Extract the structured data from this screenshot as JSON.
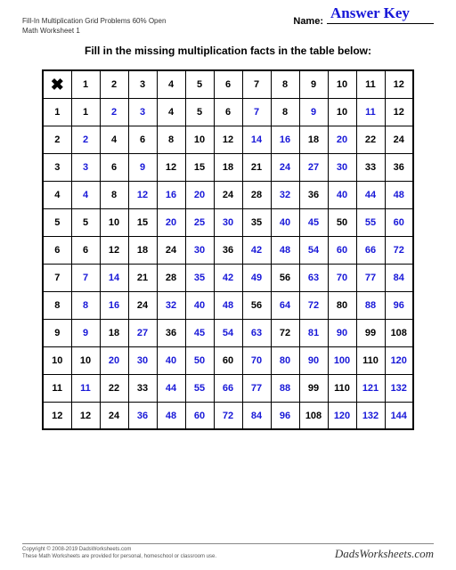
{
  "header": {
    "title_line1": "Fill-In Multiplication Grid Problems 60% Open",
    "title_line2": "Math Worksheet 1",
    "name_label": "Name:",
    "answer_key_text": "Answer Key"
  },
  "instruction": "Fill in the missing multiplication facts in the table below:",
  "grid": {
    "corner_symbol": "✖",
    "size": 12,
    "header_color": "#000000",
    "given_color": "#000000",
    "answer_color": "#1818d8",
    "cell_font_size": 11,
    "cells": [
      [
        {
          "v": 1,
          "a": false
        },
        {
          "v": 2,
          "a": true
        },
        {
          "v": 3,
          "a": true
        },
        {
          "v": 4,
          "a": false
        },
        {
          "v": 5,
          "a": false
        },
        {
          "v": 6,
          "a": false
        },
        {
          "v": 7,
          "a": true
        },
        {
          "v": 8,
          "a": false
        },
        {
          "v": 9,
          "a": true
        },
        {
          "v": 10,
          "a": false
        },
        {
          "v": 11,
          "a": true
        },
        {
          "v": 12,
          "a": false
        }
      ],
      [
        {
          "v": 2,
          "a": true
        },
        {
          "v": 4,
          "a": false
        },
        {
          "v": 6,
          "a": false
        },
        {
          "v": 8,
          "a": false
        },
        {
          "v": 10,
          "a": false
        },
        {
          "v": 12,
          "a": false
        },
        {
          "v": 14,
          "a": true
        },
        {
          "v": 16,
          "a": true
        },
        {
          "v": 18,
          "a": false
        },
        {
          "v": 20,
          "a": true
        },
        {
          "v": 22,
          "a": false
        },
        {
          "v": 24,
          "a": false
        }
      ],
      [
        {
          "v": 3,
          "a": true
        },
        {
          "v": 6,
          "a": false
        },
        {
          "v": 9,
          "a": true
        },
        {
          "v": 12,
          "a": false
        },
        {
          "v": 15,
          "a": false
        },
        {
          "v": 18,
          "a": false
        },
        {
          "v": 21,
          "a": false
        },
        {
          "v": 24,
          "a": true
        },
        {
          "v": 27,
          "a": true
        },
        {
          "v": 30,
          "a": true
        },
        {
          "v": 33,
          "a": false
        },
        {
          "v": 36,
          "a": false
        }
      ],
      [
        {
          "v": 4,
          "a": true
        },
        {
          "v": 8,
          "a": false
        },
        {
          "v": 12,
          "a": true
        },
        {
          "v": 16,
          "a": true
        },
        {
          "v": 20,
          "a": true
        },
        {
          "v": 24,
          "a": false
        },
        {
          "v": 28,
          "a": false
        },
        {
          "v": 32,
          "a": true
        },
        {
          "v": 36,
          "a": false
        },
        {
          "v": 40,
          "a": true
        },
        {
          "v": 44,
          "a": true
        },
        {
          "v": 48,
          "a": true
        }
      ],
      [
        {
          "v": 5,
          "a": false
        },
        {
          "v": 10,
          "a": false
        },
        {
          "v": 15,
          "a": false
        },
        {
          "v": 20,
          "a": true
        },
        {
          "v": 25,
          "a": true
        },
        {
          "v": 30,
          "a": true
        },
        {
          "v": 35,
          "a": false
        },
        {
          "v": 40,
          "a": true
        },
        {
          "v": 45,
          "a": true
        },
        {
          "v": 50,
          "a": false
        },
        {
          "v": 55,
          "a": true
        },
        {
          "v": 60,
          "a": true
        }
      ],
      [
        {
          "v": 6,
          "a": false
        },
        {
          "v": 12,
          "a": false
        },
        {
          "v": 18,
          "a": false
        },
        {
          "v": 24,
          "a": false
        },
        {
          "v": 30,
          "a": true
        },
        {
          "v": 36,
          "a": false
        },
        {
          "v": 42,
          "a": true
        },
        {
          "v": 48,
          "a": true
        },
        {
          "v": 54,
          "a": true
        },
        {
          "v": 60,
          "a": true
        },
        {
          "v": 66,
          "a": true
        },
        {
          "v": 72,
          "a": true
        }
      ],
      [
        {
          "v": 7,
          "a": true
        },
        {
          "v": 14,
          "a": true
        },
        {
          "v": 21,
          "a": false
        },
        {
          "v": 28,
          "a": false
        },
        {
          "v": 35,
          "a": true
        },
        {
          "v": 42,
          "a": true
        },
        {
          "v": 49,
          "a": true
        },
        {
          "v": 56,
          "a": false
        },
        {
          "v": 63,
          "a": true
        },
        {
          "v": 70,
          "a": true
        },
        {
          "v": 77,
          "a": true
        },
        {
          "v": 84,
          "a": true
        }
      ],
      [
        {
          "v": 8,
          "a": true
        },
        {
          "v": 16,
          "a": true
        },
        {
          "v": 24,
          "a": false
        },
        {
          "v": 32,
          "a": true
        },
        {
          "v": 40,
          "a": true
        },
        {
          "v": 48,
          "a": true
        },
        {
          "v": 56,
          "a": false
        },
        {
          "v": 64,
          "a": true
        },
        {
          "v": 72,
          "a": true
        },
        {
          "v": 80,
          "a": false
        },
        {
          "v": 88,
          "a": true
        },
        {
          "v": 96,
          "a": true
        }
      ],
      [
        {
          "v": 9,
          "a": true
        },
        {
          "v": 18,
          "a": false
        },
        {
          "v": 27,
          "a": true
        },
        {
          "v": 36,
          "a": false
        },
        {
          "v": 45,
          "a": true
        },
        {
          "v": 54,
          "a": true
        },
        {
          "v": 63,
          "a": true
        },
        {
          "v": 72,
          "a": false
        },
        {
          "v": 81,
          "a": true
        },
        {
          "v": 90,
          "a": true
        },
        {
          "v": 99,
          "a": false
        },
        {
          "v": 108,
          "a": false
        }
      ],
      [
        {
          "v": 10,
          "a": false
        },
        {
          "v": 20,
          "a": true
        },
        {
          "v": 30,
          "a": true
        },
        {
          "v": 40,
          "a": true
        },
        {
          "v": 50,
          "a": true
        },
        {
          "v": 60,
          "a": false
        },
        {
          "v": 70,
          "a": true
        },
        {
          "v": 80,
          "a": true
        },
        {
          "v": 90,
          "a": true
        },
        {
          "v": 100,
          "a": true
        },
        {
          "v": 110,
          "a": false
        },
        {
          "v": 120,
          "a": true
        }
      ],
      [
        {
          "v": 11,
          "a": true
        },
        {
          "v": 22,
          "a": false
        },
        {
          "v": 33,
          "a": false
        },
        {
          "v": 44,
          "a": true
        },
        {
          "v": 55,
          "a": true
        },
        {
          "v": 66,
          "a": true
        },
        {
          "v": 77,
          "a": true
        },
        {
          "v": 88,
          "a": true
        },
        {
          "v": 99,
          "a": false
        },
        {
          "v": 110,
          "a": false
        },
        {
          "v": 121,
          "a": true
        },
        {
          "v": 132,
          "a": true
        }
      ],
      [
        {
          "v": 12,
          "a": false
        },
        {
          "v": 24,
          "a": false
        },
        {
          "v": 36,
          "a": true
        },
        {
          "v": 48,
          "a": true
        },
        {
          "v": 60,
          "a": true
        },
        {
          "v": 72,
          "a": true
        },
        {
          "v": 84,
          "a": true
        },
        {
          "v": 96,
          "a": true
        },
        {
          "v": 108,
          "a": false
        },
        {
          "v": 120,
          "a": true
        },
        {
          "v": 132,
          "a": true
        },
        {
          "v": 144,
          "a": true
        }
      ]
    ]
  },
  "footer": {
    "copyright": "Copyright © 2008-2019 DadsWorksheets.com",
    "note": "These Math Worksheets are provided for personal, homeschool or classroom use.",
    "brand": "DadsWorksheets.com"
  }
}
